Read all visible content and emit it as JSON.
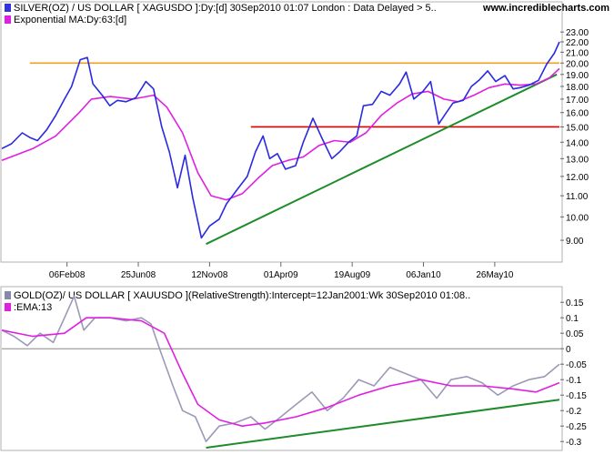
{
  "site": "www.incrediblecharts.com",
  "top_panel": {
    "legend": [
      {
        "text": "SILVER(OZ) / US DOLLAR [ XAGUSDO ]:Dy:[d]  30Sep2010 01:07 London : Data Delayed > 5..",
        "color": "#3333dd"
      },
      {
        "text": "Exponential MA:Dy:63:[d]",
        "color": "#e020e0"
      }
    ],
    "y_ticks": [
      "23.00",
      "22.00",
      "21.00",
      "20.00",
      "19.00",
      "18.00",
      "17.00",
      "16.00",
      "15.00",
      "14.00",
      "13.00",
      "12.00",
      "11.00",
      "10.00",
      "9.00"
    ],
    "x_ticks": [
      "06Feb08",
      "25Jun08",
      "12Nov08",
      "01Apr09",
      "19Aug09",
      "06Jan10",
      "26May10"
    ]
  },
  "bottom_panel": {
    "legend": [
      {
        "text": "GOLD(OZ)/ US DOLLAR [ XAUUSDO ](RelativeStrength):Intercept=12Jan2001:Wk  30Sep2010 01:08..",
        "color": "#8888aa"
      },
      {
        "text": ":EMA:13",
        "color": "#e020e0"
      }
    ],
    "y_ticks": [
      "0.15",
      "0.1",
      "0.05",
      "0",
      "-0.05",
      "-0.1",
      "-0.15",
      "-0.2",
      "-0.25",
      "-0.3"
    ]
  },
  "colors": {
    "silver": "#2a2ae0",
    "ema": "#e020e0",
    "rs": "#9a9ab8",
    "resistance": "#f0a020",
    "support": "#dd0000",
    "trend": "#1e8c2a",
    "zero": "#888888"
  },
  "chart_data": [
    {
      "type": "line",
      "title": "SILVER(OZ) / US DOLLAR [ XAGUSDO ]:Dy:[d]  30Sep2010 01:07 London : Data Delayed > 5..",
      "x_range": [
        "2007-10-01",
        "2010-09-30"
      ],
      "ylim": [
        8.5,
        23.3
      ],
      "y_scale": "log",
      "series": [
        {
          "name": "SILVER(OZ) / US DOLLAR [ XAGUSDO ]",
          "points": [
            [
              "2007-10-01",
              13.6
            ],
            [
              "2007-10-20",
              13.9
            ],
            [
              "2007-11-10",
              14.6
            ],
            [
              "2007-11-25",
              14.3
            ],
            [
              "2007-12-10",
              14.1
            ],
            [
              "2007-12-28",
              14.8
            ],
            [
              "2008-01-15",
              15.8
            ],
            [
              "2008-02-01",
              17.0
            ],
            [
              "2008-02-15",
              18.0
            ],
            [
              "2008-03-03",
              20.3
            ],
            [
              "2008-03-17",
              20.5
            ],
            [
              "2008-03-28",
              18.2
            ],
            [
              "2008-04-15",
              17.3
            ],
            [
              "2008-04-30",
              16.5
            ],
            [
              "2008-05-15",
              16.9
            ],
            [
              "2008-06-01",
              16.8
            ],
            [
              "2008-06-20",
              17.1
            ],
            [
              "2008-07-10",
              18.4
            ],
            [
              "2008-07-25",
              17.8
            ],
            [
              "2008-08-10",
              15.0
            ],
            [
              "2008-08-25",
              13.4
            ],
            [
              "2008-09-10",
              11.4
            ],
            [
              "2008-09-25",
              13.2
            ],
            [
              "2008-10-10",
              10.9
            ],
            [
              "2008-10-27",
              9.1
            ],
            [
              "2008-11-12",
              9.6
            ],
            [
              "2008-12-01",
              9.9
            ],
            [
              "2008-12-15",
              10.6
            ],
            [
              "2009-01-05",
              11.3
            ],
            [
              "2009-01-25",
              12.0
            ],
            [
              "2009-02-10",
              13.4
            ],
            [
              "2009-02-25",
              14.4
            ],
            [
              "2009-03-10",
              13.0
            ],
            [
              "2009-03-25",
              13.3
            ],
            [
              "2009-04-10",
              12.4
            ],
            [
              "2009-04-30",
              12.6
            ],
            [
              "2009-05-15",
              14.0
            ],
            [
              "2009-06-03",
              15.6
            ],
            [
              "2009-06-20",
              14.3
            ],
            [
              "2009-07-10",
              13.0
            ],
            [
              "2009-07-25",
              13.4
            ],
            [
              "2009-08-12",
              14.0
            ],
            [
              "2009-08-28",
              14.4
            ],
            [
              "2009-09-10",
              16.5
            ],
            [
              "2009-09-28",
              16.6
            ],
            [
              "2009-10-15",
              17.6
            ],
            [
              "2009-11-01",
              17.3
            ],
            [
              "2009-11-20",
              18.2
            ],
            [
              "2009-12-03",
              19.2
            ],
            [
              "2009-12-18",
              17.0
            ],
            [
              "2010-01-05",
              17.6
            ],
            [
              "2010-01-20",
              18.4
            ],
            [
              "2010-02-05",
              15.2
            ],
            [
              "2010-02-20",
              16.0
            ],
            [
              "2010-03-05",
              16.7
            ],
            [
              "2010-03-25",
              16.9
            ],
            [
              "2010-04-10",
              18.0
            ],
            [
              "2010-04-25",
              18.5
            ],
            [
              "2010-05-12",
              19.3
            ],
            [
              "2010-05-28",
              18.4
            ],
            [
              "2010-06-15",
              18.9
            ],
            [
              "2010-07-01",
              17.8
            ],
            [
              "2010-07-15",
              17.9
            ],
            [
              "2010-08-01",
              18.1
            ],
            [
              "2010-08-20",
              18.5
            ],
            [
              "2010-09-05",
              19.9
            ],
            [
              "2010-09-20",
              20.9
            ],
            [
              "2010-09-30",
              22.0
            ]
          ]
        },
        {
          "name": "Exponential MA:Dy:63:[d]",
          "points": [
            [
              "2007-10-01",
              12.9
            ],
            [
              "2007-12-01",
              13.6
            ],
            [
              "2008-01-15",
              14.4
            ],
            [
              "2008-03-01",
              16.0
            ],
            [
              "2008-03-25",
              17.0
            ],
            [
              "2008-05-01",
              17.2
            ],
            [
              "2008-06-15",
              17.0
            ],
            [
              "2008-07-25",
              17.3
            ],
            [
              "2008-08-20",
              16.4
            ],
            [
              "2008-09-20",
              14.6
            ],
            [
              "2008-10-20",
              12.2
            ],
            [
              "2008-11-15",
              11.0
            ],
            [
              "2008-12-15",
              10.8
            ],
            [
              "2009-01-15",
              11.1
            ],
            [
              "2009-02-15",
              11.9
            ],
            [
              "2009-03-15",
              12.6
            ],
            [
              "2009-04-15",
              12.9
            ],
            [
              "2009-05-15",
              13.1
            ],
            [
              "2009-06-15",
              13.8
            ],
            [
              "2009-07-15",
              14.1
            ],
            [
              "2009-08-15",
              14.0
            ],
            [
              "2009-09-15",
              14.6
            ],
            [
              "2009-10-15",
              15.8
            ],
            [
              "2009-11-15",
              16.7
            ],
            [
              "2009-12-15",
              17.4
            ],
            [
              "2010-01-15",
              17.6
            ],
            [
              "2010-02-15",
              17.0
            ],
            [
              "2010-03-15",
              16.8
            ],
            [
              "2010-04-15",
              17.3
            ],
            [
              "2010-05-15",
              17.9
            ],
            [
              "2010-06-15",
              18.2
            ],
            [
              "2010-07-15",
              18.1
            ],
            [
              "2010-08-15",
              18.2
            ],
            [
              "2010-09-10",
              18.7
            ],
            [
              "2010-09-30",
              19.5
            ]
          ]
        },
        {
          "name": "",
          "points": [
            [
              "2007-11-25",
              20.0
            ],
            [
              "2010-09-30",
              20.0
            ]
          ]
        },
        {
          "name": "",
          "points": [
            [
              "2009-02-01",
              15.0
            ],
            [
              "2010-09-30",
              15.0
            ]
          ]
        },
        {
          "name": "",
          "points": [
            [
              "2008-11-05",
              8.85
            ],
            [
              "2010-09-25",
              19.0
            ]
          ]
        }
      ]
    },
    {
      "type": "line",
      "title": "GOLD(OZ)/ US DOLLAR [ XAUUSDO ](RelativeStrength):Intercept=12Jan2001:Wk  30Sep2010 01:08..",
      "x_range": [
        "2007-10-01",
        "2010-09-30"
      ],
      "ylim": [
        -0.32,
        0.18
      ],
      "series": [
        {
          "name": "GOLD(OZ)/ US DOLLAR [ XAUUSDO ](RelativeStrength)",
          "points": [
            [
              "2007-10-01",
              0.06
            ],
            [
              "2007-10-25",
              0.04
            ],
            [
              "2007-11-20",
              0.01
            ],
            [
              "2007-12-15",
              0.05
            ],
            [
              "2008-01-10",
              0.02
            ],
            [
              "2008-02-01",
              0.1
            ],
            [
              "2008-02-20",
              0.17
            ],
            [
              "2008-03-10",
              0.06
            ],
            [
              "2008-04-01",
              0.1
            ],
            [
              "2008-05-01",
              0.1
            ],
            [
              "2008-06-01",
              0.09
            ],
            [
              "2008-07-01",
              0.1
            ],
            [
              "2008-07-20",
              0.08
            ],
            [
              "2008-08-10",
              -0.02
            ],
            [
              "2008-09-01",
              -0.12
            ],
            [
              "2008-09-20",
              -0.2
            ],
            [
              "2008-10-15",
              -0.22
            ],
            [
              "2008-11-05",
              -0.3
            ],
            [
              "2008-12-01",
              -0.25
            ],
            [
              "2009-01-01",
              -0.24
            ],
            [
              "2009-02-01",
              -0.22
            ],
            [
              "2009-03-01",
              -0.26
            ],
            [
              "2009-04-01",
              -0.22
            ],
            [
              "2009-05-01",
              -0.18
            ],
            [
              "2009-06-01",
              -0.14
            ],
            [
              "2009-07-01",
              -0.2
            ],
            [
              "2009-08-01",
              -0.16
            ],
            [
              "2009-09-01",
              -0.1
            ],
            [
              "2009-10-01",
              -0.12
            ],
            [
              "2009-11-01",
              -0.06
            ],
            [
              "2009-12-01",
              -0.08
            ],
            [
              "2010-01-01",
              -0.1
            ],
            [
              "2010-02-01",
              -0.16
            ],
            [
              "2010-03-01",
              -0.1
            ],
            [
              "2010-04-01",
              -0.09
            ],
            [
              "2010-05-01",
              -0.11
            ],
            [
              "2010-06-01",
              -0.15
            ],
            [
              "2010-07-01",
              -0.12
            ],
            [
              "2010-08-01",
              -0.1
            ],
            [
              "2010-09-01",
              -0.09
            ],
            [
              "2010-09-30",
              -0.05
            ]
          ]
        },
        {
          "name": ":EMA:13",
          "points": [
            [
              "2007-10-01",
              0.06
            ],
            [
              "2007-12-01",
              0.04
            ],
            [
              "2008-02-01",
              0.05
            ],
            [
              "2008-03-15",
              0.1
            ],
            [
              "2008-05-01",
              0.1
            ],
            [
              "2008-07-01",
              0.09
            ],
            [
              "2008-08-15",
              0.05
            ],
            [
              "2008-09-20",
              -0.08
            ],
            [
              "2008-10-20",
              -0.18
            ],
            [
              "2008-12-01",
              -0.23
            ],
            [
              "2009-01-15",
              -0.25
            ],
            [
              "2009-03-01",
              -0.24
            ],
            [
              "2009-05-01",
              -0.22
            ],
            [
              "2009-07-01",
              -0.19
            ],
            [
              "2009-09-01",
              -0.15
            ],
            [
              "2009-11-01",
              -0.12
            ],
            [
              "2010-01-01",
              -0.1
            ],
            [
              "2010-03-01",
              -0.12
            ],
            [
              "2010-05-01",
              -0.12
            ],
            [
              "2010-07-01",
              -0.13
            ],
            [
              "2010-08-15",
              -0.14
            ],
            [
              "2010-09-30",
              -0.11
            ]
          ]
        },
        {
          "name": "",
          "points": [
            [
              "2008-11-05",
              -0.32
            ],
            [
              "2010-09-30",
              -0.165
            ]
          ]
        }
      ]
    }
  ]
}
